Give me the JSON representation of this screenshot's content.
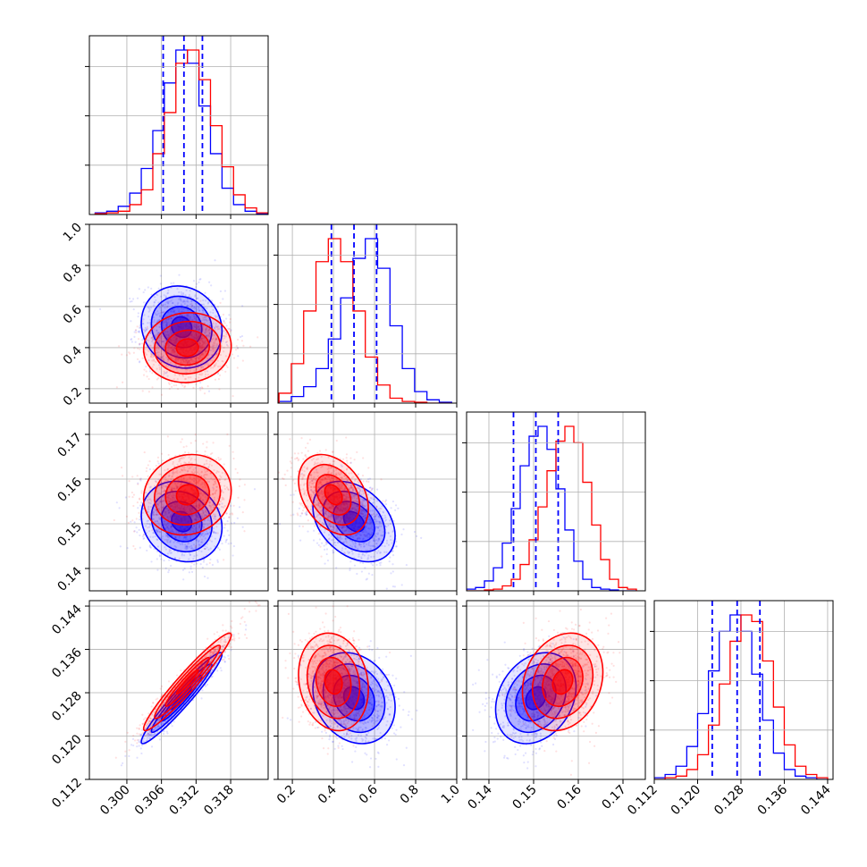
{
  "chart_data": {
    "type": "scatter",
    "title": "",
    "series": [
      {
        "name": "",
        "color": "#0000ff"
      },
      {
        "name": "",
        "color": "#ff0000"
      }
    ],
    "quantile_lines_color": "#0000ff",
    "grid": true,
    "parameters": [
      {
        "range": [
          0.2935,
          0.3245
        ],
        "ticks": [
          0.3,
          0.306,
          0.312,
          0.318
        ],
        "tick_labels": [
          "0.300",
          "0.306",
          "0.312",
          "0.318"
        ],
        "hist_bins": [
          0.2955,
          0.2975,
          0.2995,
          0.3015,
          0.3035,
          0.3055,
          0.3075,
          0.3095,
          0.3115,
          0.3135,
          0.3155,
          0.3175,
          0.3195,
          0.3215,
          0.3235
        ],
        "hist_blue": [
          0.01,
          0.02,
          0.05,
          0.13,
          0.28,
          0.51,
          0.8,
          1.0,
          0.92,
          0.66,
          0.37,
          0.16,
          0.06,
          0.02,
          0.005
        ],
        "hist_red": [
          0.005,
          0.01,
          0.02,
          0.06,
          0.15,
          0.37,
          0.62,
          0.92,
          1.0,
          0.82,
          0.54,
          0.29,
          0.12,
          0.04,
          0.01
        ],
        "quantiles": [
          0.3063,
          0.3099,
          0.3131
        ]
      },
      {
        "range": [
          0.13,
          1.0
        ],
        "ticks": [
          0.2,
          0.4,
          0.6,
          0.8,
          1.0
        ],
        "tick_labels": [
          "0.2",
          "0.4",
          "0.6",
          "0.8",
          "1.0"
        ],
        "hist_bins": [
          0.165,
          0.225,
          0.285,
          0.345,
          0.405,
          0.465,
          0.525,
          0.585,
          0.645,
          0.705,
          0.765,
          0.825,
          0.885,
          0.945
        ],
        "hist_blue": [
          0.01,
          0.04,
          0.1,
          0.21,
          0.39,
          0.64,
          0.88,
          1.0,
          0.82,
          0.47,
          0.21,
          0.07,
          0.02,
          0.005
        ],
        "hist_red": [
          0.06,
          0.24,
          0.56,
          0.86,
          1.0,
          0.86,
          0.56,
          0.28,
          0.11,
          0.03,
          0.01,
          0.005,
          0.0,
          0.0
        ],
        "quantiles": [
          0.39,
          0.5,
          0.61
        ]
      },
      {
        "range": [
          0.135,
          0.175
        ],
        "ticks": [
          0.14,
          0.15,
          0.16,
          0.17
        ],
        "tick_labels": [
          "0.14",
          "0.15",
          "0.16",
          "0.17"
        ],
        "hist_bins": [
          0.136,
          0.138,
          0.14,
          0.142,
          0.144,
          0.146,
          0.148,
          0.15,
          0.152,
          0.154,
          0.156,
          0.158,
          0.16,
          0.162,
          0.164,
          0.166,
          0.168,
          0.17,
          0.172
        ],
        "hist_blue": [
          0.01,
          0.02,
          0.06,
          0.14,
          0.29,
          0.5,
          0.76,
          0.94,
          1.0,
          0.86,
          0.62,
          0.37,
          0.18,
          0.07,
          0.02,
          0.01,
          0.005,
          0.0,
          0.0
        ],
        "hist_red": [
          0.0,
          0.0,
          0.005,
          0.01,
          0.03,
          0.07,
          0.16,
          0.31,
          0.51,
          0.73,
          0.91,
          1.0,
          0.9,
          0.66,
          0.4,
          0.19,
          0.07,
          0.02,
          0.01
        ],
        "quantiles": [
          0.1455,
          0.1505,
          0.1555
        ]
      },
      {
        "range": [
          0.112,
          0.145
        ],
        "ticks": [
          0.112,
          0.12,
          0.128,
          0.136,
          0.144
        ],
        "tick_labels": [
          "0.112",
          "0.120",
          "0.128",
          "0.136",
          "0.144"
        ],
        "hist_bins": [
          0.113,
          0.115,
          0.117,
          0.119,
          0.121,
          0.123,
          0.125,
          0.127,
          0.129,
          0.131,
          0.133,
          0.135,
          0.137,
          0.139,
          0.141,
          0.143
        ],
        "hist_blue": [
          0.01,
          0.03,
          0.08,
          0.2,
          0.4,
          0.66,
          0.9,
          1.0,
          0.9,
          0.64,
          0.36,
          0.16,
          0.06,
          0.02,
          0.01,
          0.0
        ],
        "hist_red": [
          0.0,
          0.01,
          0.02,
          0.06,
          0.15,
          0.33,
          0.58,
          0.84,
          1.0,
          0.96,
          0.72,
          0.44,
          0.21,
          0.08,
          0.03,
          0.01
        ],
        "quantiles": [
          0.1227,
          0.1273,
          0.1315
        ]
      }
    ],
    "pairs": [
      {
        "x": 0,
        "y": 1,
        "blue": {
          "mean": [
            0.3095,
            0.5
          ],
          "sd": [
            0.0035,
            0.1
          ],
          "rho": -0.1
        },
        "red": {
          "mean": [
            0.3105,
            0.4
          ],
          "sd": [
            0.0038,
            0.085
          ],
          "rho": 0.05
        }
      },
      {
        "x": 0,
        "y": 2,
        "blue": {
          "mean": [
            0.3095,
            0.1505
          ],
          "sd": [
            0.0035,
            0.0045
          ],
          "rho": -0.15
        },
        "red": {
          "mean": [
            0.3105,
            0.1565
          ],
          "sd": [
            0.0038,
            0.0045
          ],
          "rho": 0.1
        }
      },
      {
        "x": 1,
        "y": 2,
        "blue": {
          "mean": [
            0.5,
            0.1505
          ],
          "sd": [
            0.1,
            0.0045
          ],
          "rho": -0.35
        },
        "red": {
          "mean": [
            0.4,
            0.1565
          ],
          "sd": [
            0.085,
            0.0045
          ],
          "rho": -0.35
        }
      },
      {
        "x": 0,
        "y": 3,
        "blue": {
          "mean": [
            0.3095,
            0.127
          ],
          "sd": [
            0.0035,
            0.0042
          ],
          "rho": 0.96
        },
        "red": {
          "mean": [
            0.3105,
            0.13
          ],
          "sd": [
            0.0038,
            0.0045
          ],
          "rho": 0.96
        }
      },
      {
        "x": 1,
        "y": 3,
        "blue": {
          "mean": [
            0.5,
            0.127
          ],
          "sd": [
            0.1,
            0.0042
          ],
          "rho": -0.2
        },
        "red": {
          "mean": [
            0.4,
            0.13
          ],
          "sd": [
            0.085,
            0.0045
          ],
          "rho": -0.15
        }
      },
      {
        "x": 2,
        "y": 3,
        "blue": {
          "mean": [
            0.1505,
            0.127
          ],
          "sd": [
            0.0045,
            0.0042
          ],
          "rho": 0.25
        },
        "red": {
          "mean": [
            0.1565,
            0.13
          ],
          "sd": [
            0.0045,
            0.0045
          ],
          "rho": 0.2
        }
      }
    ]
  }
}
